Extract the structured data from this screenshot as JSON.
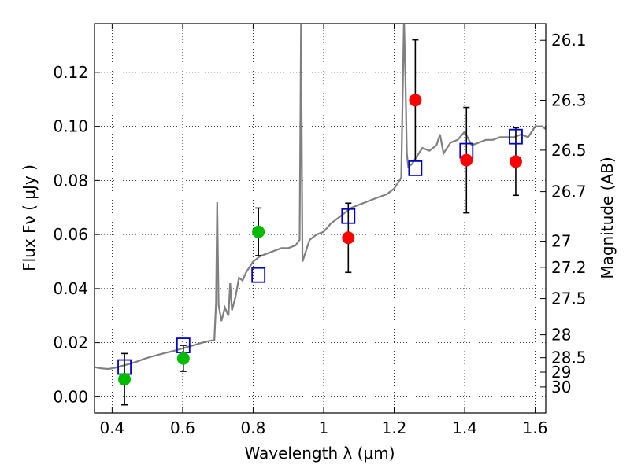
{
  "chart_data": {
    "type": "scatter",
    "xlabel": "Wavelength  λ (μm)",
    "ylabel": "Flux  Fν  ( μJy )",
    "ylabel_right": "Magnitude (AB)",
    "xlim": [
      0.35,
      1.63
    ],
    "ylim": [
      -0.006,
      0.138
    ],
    "grid": true,
    "x_ticks": [
      {
        "value": 0.4,
        "label": "0.4"
      },
      {
        "value": 0.6,
        "label": "0.6"
      },
      {
        "value": 0.8,
        "label": "0.8"
      },
      {
        "value": 1.0,
        "label": "1"
      },
      {
        "value": 1.2,
        "label": "1.2"
      },
      {
        "value": 1.4,
        "label": "1.4"
      },
      {
        "value": 1.6,
        "label": "1.6"
      }
    ],
    "y_ticks": [
      {
        "value": 0.0,
        "label": "0.00"
      },
      {
        "value": 0.02,
        "label": "0.02"
      },
      {
        "value": 0.04,
        "label": "0.04"
      },
      {
        "value": 0.06,
        "label": "0.06"
      },
      {
        "value": 0.08,
        "label": "0.08"
      },
      {
        "value": 0.1,
        "label": "0.10"
      },
      {
        "value": 0.12,
        "label": "0.12"
      }
    ],
    "right_ticks": [
      {
        "mag": 26.1,
        "label": "26.1"
      },
      {
        "mag": 26.3,
        "label": "26.3"
      },
      {
        "mag": 26.5,
        "label": "26.5"
      },
      {
        "mag": 26.7,
        "label": "26.7"
      },
      {
        "mag": 27.0,
        "label": "27"
      },
      {
        "mag": 27.2,
        "label": "27.2"
      },
      {
        "mag": 27.5,
        "label": "27.5"
      },
      {
        "mag": 28.0,
        "label": "28"
      },
      {
        "mag": 28.5,
        "label": "28.5"
      },
      {
        "mag": 29.0,
        "label": "29"
      },
      {
        "mag": 30.0,
        "label": "30"
      }
    ],
    "spectrum": {
      "color": "#808080",
      "x": [
        0.35,
        0.37,
        0.39,
        0.41,
        0.43,
        0.45,
        0.47,
        0.49,
        0.51,
        0.53,
        0.55,
        0.57,
        0.59,
        0.61,
        0.63,
        0.65,
        0.67,
        0.69,
        0.695,
        0.698,
        0.702,
        0.71,
        0.72,
        0.73,
        0.735,
        0.74,
        0.75,
        0.76,
        0.77,
        0.78,
        0.79,
        0.8,
        0.81,
        0.82,
        0.84,
        0.86,
        0.88,
        0.9,
        0.92,
        0.932,
        0.936,
        0.94,
        0.945,
        0.96,
        0.98,
        1.0,
        1.02,
        1.04,
        1.06,
        1.08,
        1.1,
        1.12,
        1.14,
        1.16,
        1.18,
        1.2,
        1.21,
        1.22,
        1.228,
        1.232,
        1.236,
        1.24,
        1.25,
        1.26,
        1.28,
        1.3,
        1.32,
        1.33,
        1.34,
        1.36,
        1.38,
        1.4,
        1.42,
        1.44,
        1.46,
        1.48,
        1.5,
        1.52,
        1.54,
        1.56,
        1.58,
        1.6,
        1.62,
        1.63
      ],
      "y": [
        0.011,
        0.0105,
        0.0103,
        0.0108,
        0.0115,
        0.0122,
        0.013,
        0.014,
        0.0148,
        0.0155,
        0.0162,
        0.0168,
        0.0175,
        0.0183,
        0.019,
        0.0198,
        0.0205,
        0.021,
        0.035,
        0.072,
        0.034,
        0.028,
        0.033,
        0.03,
        0.042,
        0.032,
        0.037,
        0.044,
        0.043,
        0.046,
        0.048,
        0.05,
        0.051,
        0.052,
        0.053,
        0.054,
        0.055,
        0.055,
        0.056,
        0.058,
        0.138,
        0.05,
        0.052,
        0.058,
        0.06,
        0.061,
        0.064,
        0.066,
        0.068,
        0.07,
        0.071,
        0.072,
        0.073,
        0.074,
        0.075,
        0.077,
        0.079,
        0.081,
        0.14,
        0.118,
        0.09,
        0.085,
        0.086,
        0.088,
        0.092,
        0.091,
        0.093,
        0.097,
        0.09,
        0.094,
        0.095,
        0.098,
        0.093,
        0.094,
        0.095,
        0.095,
        0.096,
        0.096,
        0.096,
        0.097,
        0.096,
        0.1,
        0.1,
        0.099
      ]
    },
    "series": [
      {
        "marker": "square-open",
        "color": "#0000cc",
        "points": [
          {
            "x": 0.435,
            "y": 0.011
          },
          {
            "x": 0.602,
            "y": 0.019
          },
          {
            "x": 0.815,
            "y": 0.045
          },
          {
            "x": 1.07,
            "y": 0.0668
          },
          {
            "x": 1.26,
            "y": 0.0845
          },
          {
            "x": 1.405,
            "y": 0.091
          },
          {
            "x": 1.545,
            "y": 0.0962
          }
        ]
      },
      {
        "marker": "circle",
        "color": "#00bb00",
        "points": [
          {
            "x": 0.435,
            "y": 0.0065,
            "err": 0.0095
          },
          {
            "x": 0.602,
            "y": 0.0142,
            "err": 0.0048
          },
          {
            "x": 0.815,
            "y": 0.061,
            "err": 0.0088
          }
        ]
      },
      {
        "marker": "circle",
        "color": "#ff0000",
        "points": [
          {
            "x": 1.07,
            "y": 0.0588,
            "err": 0.0128
          },
          {
            "x": 1.26,
            "y": 0.1097,
            "err": 0.0223
          },
          {
            "x": 1.405,
            "y": 0.0875,
            "err": 0.0195
          },
          {
            "x": 1.545,
            "y": 0.087,
            "err": 0.0125
          }
        ]
      }
    ]
  }
}
